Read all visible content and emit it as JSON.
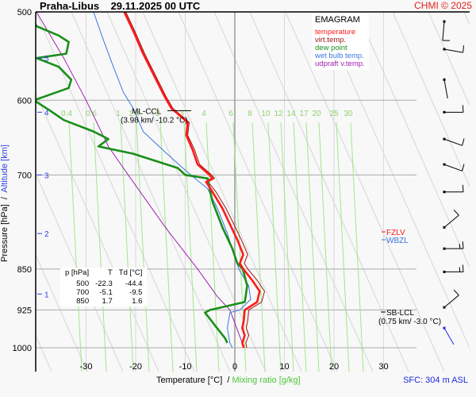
{
  "header": {
    "station": "Praha-Libus",
    "datetime": "29.11.2025 00 UTC",
    "copyright": "CHMI © 2025"
  },
  "legend": {
    "title": "EMAGRAM",
    "items": [
      {
        "label": "temperature",
        "color": "#ff1a1a"
      },
      {
        "label": "virt.temp.",
        "color": "#9a1414"
      },
      {
        "label": "dew point",
        "color": "#1a8f1a"
      },
      {
        "label": "wet bulb temp.",
        "color": "#3a78e0"
      },
      {
        "label": "udpraft v.temp.",
        "color": "#a020b0"
      }
    ]
  },
  "summary_table": {
    "headers": [
      "p [hPa]",
      "T",
      "Td [°C]"
    ],
    "rows": [
      [
        "500",
        "-22.3",
        "-44.4"
      ],
      [
        "700",
        "-5.1",
        "-9.5"
      ],
      [
        "850",
        "1.7",
        "1.6"
      ]
    ]
  },
  "annotations": {
    "ml_ccl": {
      "label": "ML-CCL",
      "detail": "(3.98 km/ -10.2 °C)"
    },
    "sb_lcl": {
      "label": "SB-LCL",
      "detail": "(0.75 km/ -3.0 °C)"
    },
    "fzlv": {
      "label": "FZLV",
      "color": "#ff1a1a"
    },
    "wbzl": {
      "label": "WBZL",
      "color": "#3a78e0"
    }
  },
  "axes": {
    "xlabel_main": "Temperature [°C]  / ",
    "xlabel_mixing": "Mixing ratio [g/kg]",
    "ylabel_main": "Pressure [hPa]  /  ",
    "ylabel_alt": "Altitude [km]",
    "surface": "SFC: 304 m ASL"
  },
  "chart_data": {
    "type": "line",
    "title": "Praha-Libus 29.11.2025 00 UTC - EMAGRAM",
    "xlabel": "Temperature [°C] / Mixing ratio [g/kg]",
    "ylabel": "Pressure [hPa] / Altitude [km]",
    "xlim": [
      -40,
      48
    ],
    "ylim": [
      1040,
      500
    ],
    "y_scale": "log",
    "grid": true,
    "legend_position": "top-right",
    "x_ticks": [
      -30,
      -20,
      -10,
      0,
      10,
      20,
      30
    ],
    "x_tick_labels": [
      "-30",
      "-20",
      "-10",
      "0",
      "10",
      "20",
      "30"
    ],
    "pressure_ticks": [
      500,
      600,
      700,
      850,
      925,
      1000
    ],
    "pressure_tick_labels": [
      "500",
      "600",
      "700",
      "850",
      "925",
      "1000"
    ],
    "altitude_ticks": [
      {
        "km": 5,
        "p": 550
      },
      {
        "km": 4,
        "p": 615
      },
      {
        "km": 3,
        "p": 700
      },
      {
        "km": 2,
        "p": 790
      },
      {
        "km": 1,
        "p": 895
      }
    ],
    "mixing_ratio_labels": [
      "0.4",
      "0.6",
      "1",
      "1.4",
      "2",
      "3",
      "4",
      "6",
      "8",
      "10",
      "12",
      "14",
      "17",
      "20",
      "25",
      "30"
    ],
    "series": [
      {
        "name": "temperature",
        "points": [
          [
            -22.3,
            500
          ],
          [
            -20.5,
            520
          ],
          [
            -18.5,
            545
          ],
          [
            -16.3,
            570
          ],
          [
            -14.2,
            595
          ],
          [
            -12.8,
            610
          ],
          [
            -9.5,
            628
          ],
          [
            -9.8,
            645
          ],
          [
            -8.5,
            665
          ],
          [
            -7.5,
            685
          ],
          [
            -5.1,
            700
          ],
          [
            -4.5,
            705
          ],
          [
            -5.8,
            710
          ],
          [
            -4.5,
            725
          ],
          [
            -2.5,
            750
          ],
          [
            -1.0,
            775
          ],
          [
            0.5,
            800
          ],
          [
            1.7,
            825
          ],
          [
            1.0,
            840
          ],
          [
            1.7,
            850
          ],
          [
            3.5,
            870
          ],
          [
            5.0,
            890
          ],
          [
            4.5,
            910
          ],
          [
            2.0,
            925
          ],
          [
            1.8,
            945
          ],
          [
            1.5,
            960
          ],
          [
            2.0,
            975
          ],
          [
            1.5,
            990
          ],
          [
            1.8,
            1000
          ]
        ]
      },
      {
        "name": "virt.temp.",
        "points": [
          [
            -22.0,
            500
          ],
          [
            -20.2,
            520
          ],
          [
            -18.2,
            545
          ],
          [
            -16.0,
            570
          ],
          [
            -13.9,
            595
          ],
          [
            -12.5,
            610
          ],
          [
            -9.2,
            628
          ],
          [
            -9.5,
            645
          ],
          [
            -8.1,
            665
          ],
          [
            -7.1,
            685
          ],
          [
            -4.7,
            700
          ],
          [
            -4.1,
            705
          ],
          [
            -5.4,
            710
          ],
          [
            -3.8,
            725
          ],
          [
            -1.8,
            750
          ],
          [
            -0.2,
            775
          ],
          [
            1.3,
            800
          ],
          [
            2.6,
            825
          ],
          [
            1.9,
            840
          ],
          [
            2.6,
            850
          ],
          [
            4.5,
            870
          ],
          [
            6.0,
            890
          ],
          [
            5.4,
            910
          ],
          [
            2.8,
            925
          ],
          [
            2.6,
            945
          ],
          [
            2.3,
            960
          ],
          [
            2.8,
            975
          ],
          [
            2.2,
            990
          ],
          [
            2.4,
            1000
          ]
        ]
      },
      {
        "name": "dew point",
        "points": [
          [
            -40.5,
            510
          ],
          [
            -40.0,
            515
          ],
          [
            -35.5,
            525
          ],
          [
            -33.5,
            532
          ],
          [
            -34.0,
            545
          ],
          [
            -40.0,
            550
          ],
          [
            -35.5,
            560
          ],
          [
            -33.0,
            575
          ],
          [
            -33.5,
            585
          ],
          [
            -40.5,
            600
          ],
          [
            -37.5,
            612
          ],
          [
            -34.5,
            625
          ],
          [
            -28.5,
            640
          ],
          [
            -25.5,
            650
          ],
          [
            -27.5,
            660
          ],
          [
            -20.5,
            670
          ],
          [
            -11.5,
            690
          ],
          [
            -10.0,
            700
          ],
          [
            -5.5,
            705
          ],
          [
            -4.5,
            740
          ],
          [
            -2.5,
            780
          ],
          [
            -0.5,
            815
          ],
          [
            0.5,
            840
          ],
          [
            1.6,
            850
          ],
          [
            2.5,
            880
          ],
          [
            2.0,
            910
          ],
          [
            -5.0,
            925
          ],
          [
            -6.0,
            930
          ],
          [
            -4.0,
            955
          ],
          [
            -2.0,
            980
          ],
          [
            -1.5,
            990
          ]
        ]
      },
      {
        "name": "wet bulb temp.",
        "points": [
          [
            -28.5,
            500
          ],
          [
            -26.5,
            530
          ],
          [
            -24.5,
            560
          ],
          [
            -22.5,
            590
          ],
          [
            -20.5,
            610
          ],
          [
            -18.5,
            640
          ],
          [
            -14.5,
            665
          ],
          [
            -10.5,
            690
          ],
          [
            -8.0,
            705
          ],
          [
            -5.5,
            720
          ],
          [
            -3.5,
            750
          ],
          [
            -1.5,
            790
          ],
          [
            -0.3,
            820
          ],
          [
            0.8,
            850
          ],
          [
            2.8,
            880
          ],
          [
            3.2,
            905
          ],
          [
            1.0,
            925
          ],
          [
            -1.0,
            930
          ],
          [
            -1.5,
            960
          ],
          [
            -1.0,
            990
          ],
          [
            -0.5,
            1000
          ]
        ]
      },
      {
        "name": "udpraft v.temp.",
        "points": [
          [
            -40.0,
            500
          ],
          [
            -34.5,
            550
          ],
          [
            -30.0,
            600
          ],
          [
            -25.5,
            660
          ],
          [
            -21.5,
            700
          ],
          [
            -14.0,
            780
          ],
          [
            -7.5,
            850
          ],
          [
            -3.5,
            900
          ],
          [
            -1.0,
            925
          ],
          [
            1.5,
            990
          ]
        ]
      }
    ],
    "wind_barbs": [
      {
        "p": 510,
        "dir_deg": 5,
        "speed_kt": 10
      },
      {
        "p": 540,
        "dir_deg": 280,
        "speed_kt": 10
      },
      {
        "p": 575,
        "dir_deg": 350,
        "speed_kt": 0
      },
      {
        "p": 615,
        "dir_deg": 270,
        "speed_kt": 10
      },
      {
        "p": 650,
        "dir_deg": 290,
        "speed_kt": 10
      },
      {
        "p": 685,
        "dir_deg": 290,
        "speed_kt": 10
      },
      {
        "p": 725,
        "dir_deg": 270,
        "speed_kt": 10
      },
      {
        "p": 780,
        "dir_deg": 230,
        "speed_kt": 10
      },
      {
        "p": 815,
        "dir_deg": 270,
        "speed_kt": 15
      },
      {
        "p": 855,
        "dir_deg": 270,
        "speed_kt": 15
      },
      {
        "p": 920,
        "dir_deg": 230,
        "speed_kt": 10
      },
      {
        "p": 960,
        "dir_deg": 330,
        "speed_kt": 0
      }
    ]
  }
}
